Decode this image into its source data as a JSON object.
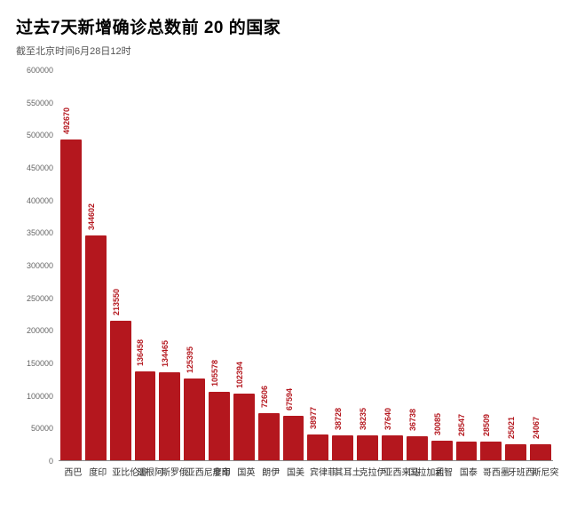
{
  "title": "过去7天新增确诊总数前 20 的国家",
  "subtitle": "截至北京时间6月28日12时",
  "chart": {
    "type": "bar",
    "background_color": "#ffffff",
    "bar_color": "#b4171e",
    "value_label_color": "#b4171e",
    "axis_label_color": "#666666",
    "axis_font_size": 9,
    "value_font_size": 9,
    "xlabel_font_size": 10,
    "ylim": [
      0,
      600000
    ],
    "ytick_step": 50000,
    "y_ticks": [
      0,
      50000,
      100000,
      150000,
      200000,
      250000,
      300000,
      350000,
      400000,
      450000,
      500000,
      550000,
      600000
    ],
    "bar_width_ratio": 1.0,
    "categories": [
      "巴西",
      "印度",
      "哥伦比亚",
      "阿根廷",
      "俄罗斯",
      "印度尼西亚",
      "南非",
      "英国",
      "伊朗",
      "美国",
      "菲律宾",
      "土耳其",
      "伊拉克",
      "马来西亚",
      "孟加拉国",
      "智利",
      "泰国",
      "墨西哥",
      "西班牙",
      "突尼斯"
    ],
    "values": [
      492670,
      344602,
      213550,
      136458,
      134465,
      125395,
      105578,
      102394,
      72606,
      67594,
      38977,
      38728,
      38235,
      37640,
      36738,
      30085,
      28547,
      28509,
      25021,
      24067
    ]
  }
}
